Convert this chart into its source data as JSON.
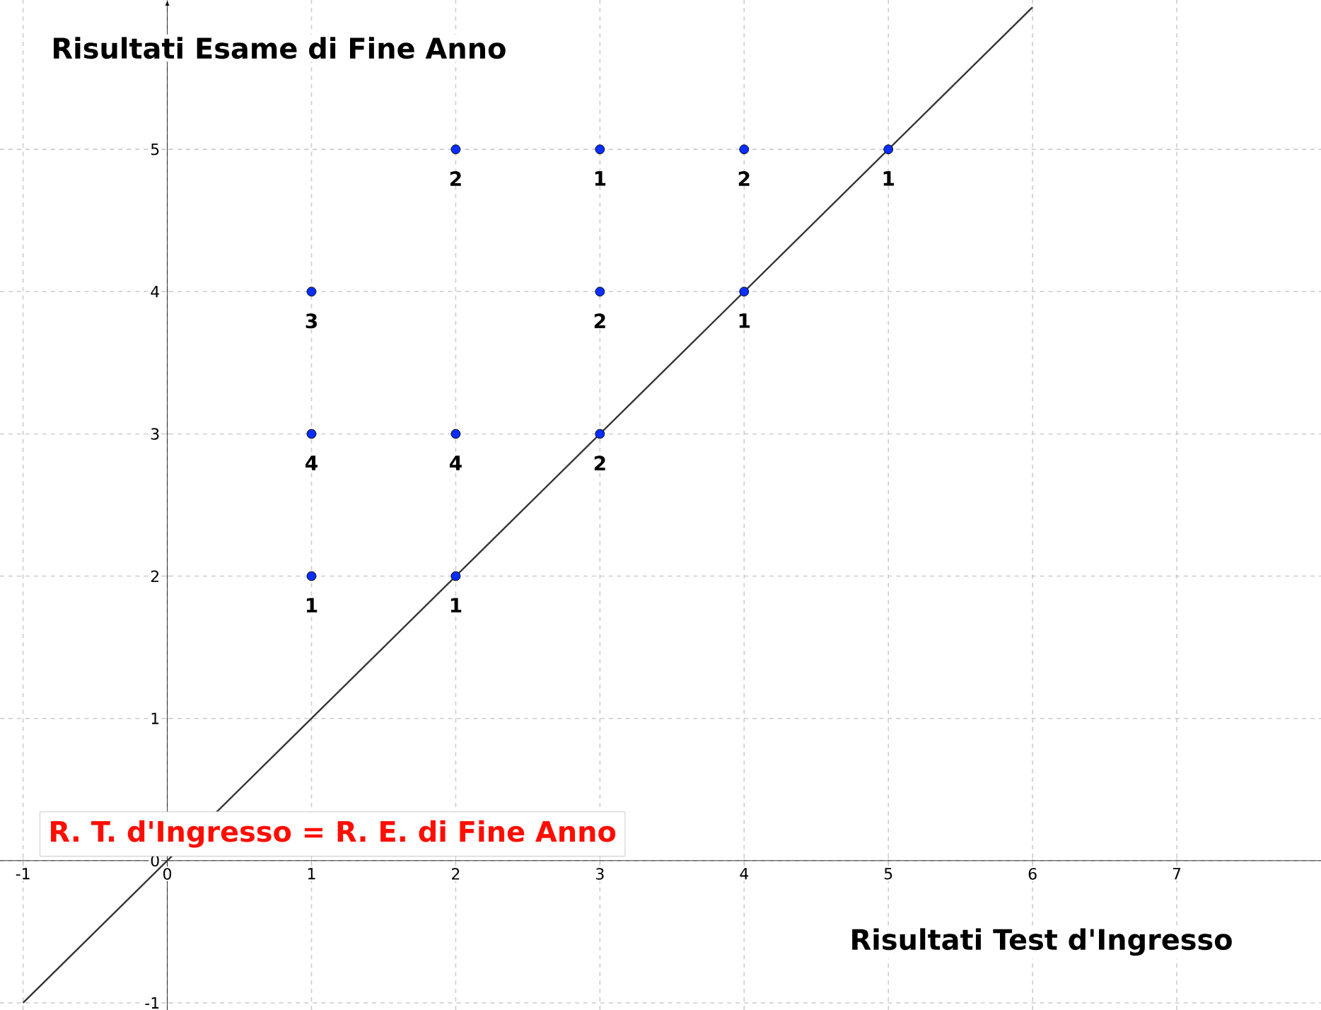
{
  "chart_data": {
    "type": "scatter",
    "xlabel": "Risultati Test d'Ingresso",
    "ylabel": "Risultati Esame di Fine Anno",
    "annotations": [
      "R. T. d'Ingresso = R. E. di Fine Anno",
      {
        "text": "1",
        "x": 1,
        "y": 2
      },
      {
        "text": "4",
        "x": 1,
        "y": 3
      },
      {
        "text": "3",
        "x": 1,
        "y": 4
      },
      {
        "text": "1",
        "x": 2,
        "y": 2
      },
      {
        "text": "4",
        "x": 2,
        "y": 3
      },
      {
        "text": "2",
        "x": 2,
        "y": 5
      },
      {
        "text": "2",
        "x": 3,
        "y": 3
      },
      {
        "text": "2",
        "x": 3,
        "y": 4
      },
      {
        "text": "1",
        "x": 3,
        "y": 5
      },
      {
        "text": "1",
        "x": 4,
        "y": 4
      },
      {
        "text": "2",
        "x": 4,
        "y": 5
      },
      {
        "text": "1",
        "x": 5,
        "y": 5
      }
    ],
    "xlim": [
      -1.16,
      8.0
    ],
    "ylim": [
      -1.05,
      6.05
    ],
    "xticks": [
      -1,
      0,
      1,
      2,
      3,
      4,
      5,
      6,
      7
    ],
    "yticks": [
      -1,
      0,
      1,
      2,
      3,
      4,
      5
    ],
    "grid": true,
    "series": [
      {
        "marker": "circle",
        "color": "#0a2eff",
        "x": [
          1,
          1,
          1,
          2,
          2,
          2,
          3,
          3,
          3,
          4,
          4,
          5
        ],
        "values": [
          2,
          3,
          4,
          2,
          3,
          5,
          3,
          4,
          5,
          4,
          5,
          5
        ]
      },
      {
        "type": "line",
        "marker": "none",
        "color": "#333333",
        "x": [
          -1,
          6
        ],
        "values": [
          -1,
          6
        ]
      }
    ]
  }
}
